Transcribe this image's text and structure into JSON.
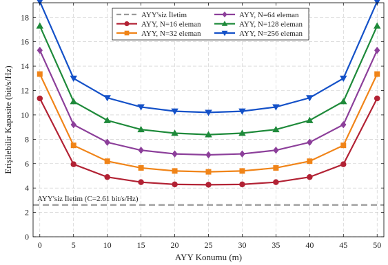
{
  "chart_data": {
    "type": "line",
    "title": "",
    "xlabel": "AYY Konumu (m)",
    "ylabel": "Erişilebilir Kapasite (bit/s/Hz)",
    "xlim": [
      -1,
      51
    ],
    "ylim": [
      0,
      19.2
    ],
    "xticks": [
      0,
      5,
      10,
      15,
      20,
      25,
      30,
      35,
      40,
      45,
      50
    ],
    "yticks": [
      0,
      2,
      4,
      6,
      8,
      10,
      12,
      14,
      16,
      18
    ],
    "grid": true,
    "legend_position": "top-center",
    "x": [
      0,
      5,
      10,
      15,
      20,
      25,
      30,
      35,
      40,
      45,
      50
    ],
    "series": [
      {
        "name": "AYY, N=16 eleman",
        "color": "#b22234",
        "marker": "circle",
        "values": [
          11.35,
          5.95,
          4.9,
          4.48,
          4.3,
          4.27,
          4.3,
          4.48,
          4.9,
          5.95,
          11.35
        ]
      },
      {
        "name": "AYY, N=32 eleman",
        "color": "#f08418",
        "marker": "square",
        "values": [
          13.35,
          7.5,
          6.2,
          5.65,
          5.4,
          5.33,
          5.4,
          5.65,
          6.2,
          7.5,
          13.35
        ]
      },
      {
        "name": "AYY, N=64 eleman",
        "color": "#8c3f9a",
        "marker": "diamond",
        "values": [
          15.3,
          9.2,
          7.75,
          7.1,
          6.8,
          6.72,
          6.8,
          7.1,
          7.75,
          9.2,
          15.3
        ]
      },
      {
        "name": "AYY, N=128 eleman",
        "color": "#1e8a3a",
        "marker": "triangle-up",
        "values": [
          17.3,
          11.1,
          9.55,
          8.8,
          8.5,
          8.38,
          8.5,
          8.8,
          9.55,
          11.1,
          17.3
        ]
      },
      {
        "name": "AYY, N=256 eleman",
        "color": "#1451c8",
        "marker": "triangle-down",
        "values": [
          19.3,
          13.0,
          11.4,
          10.65,
          10.3,
          10.2,
          10.3,
          10.65,
          11.4,
          13.0,
          19.3
        ]
      }
    ],
    "baseline": {
      "name": "AYY'siz İletim",
      "value": 2.61,
      "color": "#999999"
    },
    "annotations": [
      "AYY'siz İletim (C=2.61 bit/s/Hz)"
    ]
  }
}
